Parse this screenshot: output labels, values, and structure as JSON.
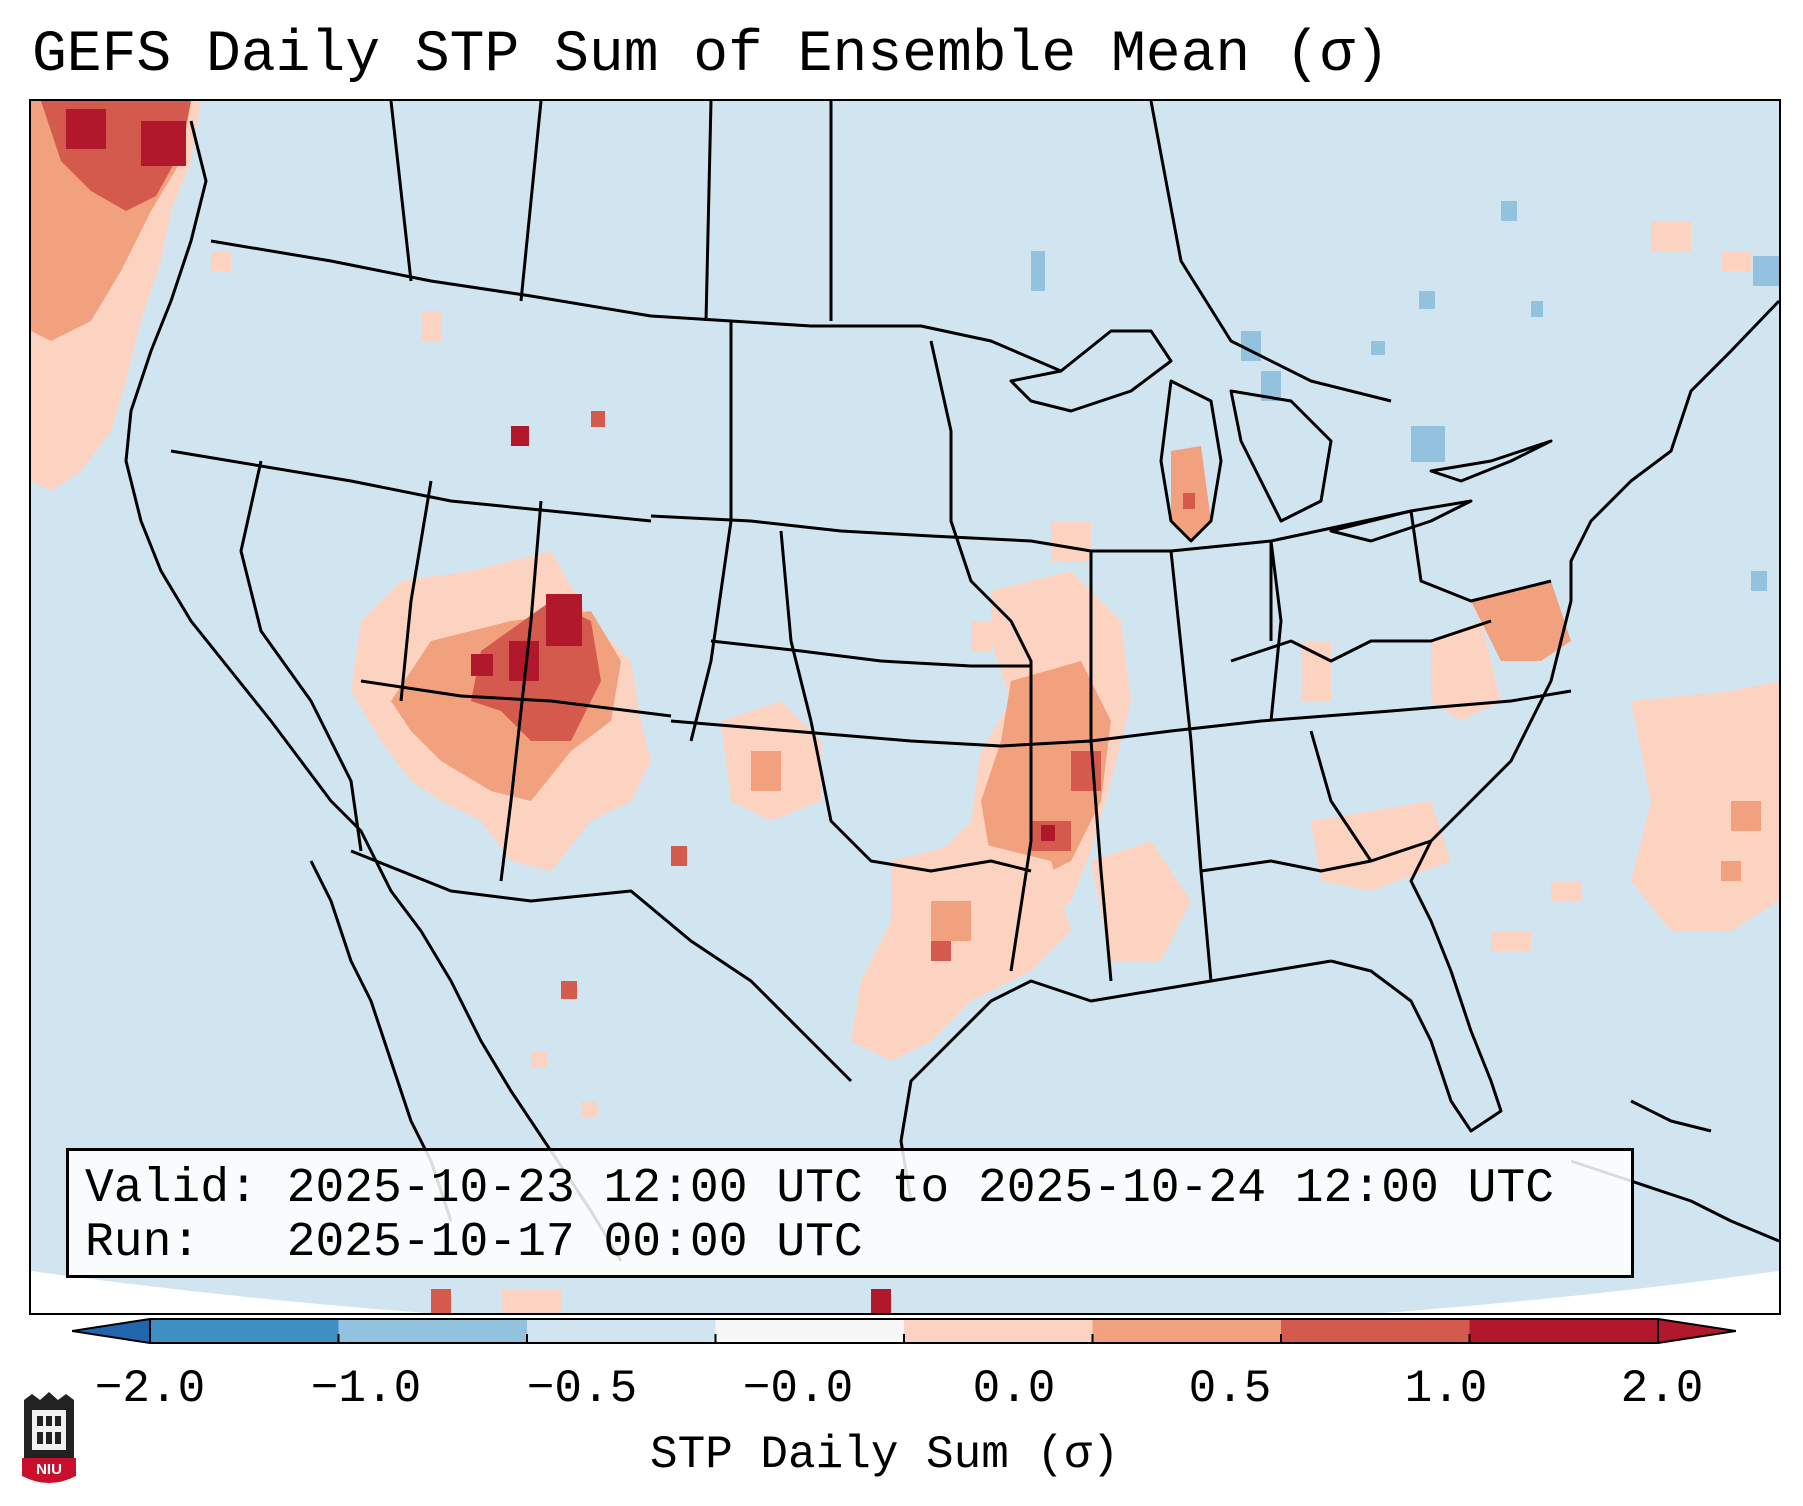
{
  "title": "GEFS Daily STP Sum of Ensemble Mean (σ)",
  "info": {
    "valid_line": "Valid: 2025-10-23 12:00 UTC to 2025-10-24 12:00 UTC",
    "run_line": "Run:   2025-10-17 00:00 UTC"
  },
  "colorbar": {
    "label": "STP Daily Sum (σ)",
    "ticks": [
      "−2.0",
      "−1.0",
      "−0.5",
      "−0.0",
      "0.0",
      "0.5",
      "1.0",
      "2.0"
    ],
    "bin_colors": [
      "#3f8fc5",
      "#92c2de",
      "#d1e5f0",
      "#f7f7f7",
      "#fbd3c0",
      "#f2a17f",
      "#d45a4e",
      "#b2182b"
    ],
    "extend_low_color": "#2166ac",
    "extend_high_color": "#b2182b"
  },
  "map": {
    "background_color": "#d1e5f0",
    "region": "Contiguous United States with southern Canada and northern Mexico",
    "anomaly_areas": [
      {
        "location": "Pacific Northwest coast (offshore WA/BC)",
        "value_sigma": 1.5
      },
      {
        "location": "Utah / western Colorado",
        "value_sigma": 1.3
      },
      {
        "location": "northern Arizona / New Mexico",
        "value_sigma": 0.8
      },
      {
        "location": "Missouri / Arkansas / Mississippi valley",
        "value_sigma": 0.9
      },
      {
        "location": "Texas Panhandle / western Oklahoma",
        "value_sigma": 0.5
      },
      {
        "location": "Gulf coast of Texas / Louisiana",
        "value_sigma": 0.3
      },
      {
        "location": "southern Lake Michigan",
        "value_sigma": 0.6
      },
      {
        "location": "Chesapeake Bay / Virginia coast",
        "value_sigma": 0.6
      },
      {
        "location": "western Atlantic offshore",
        "value_sigma": 0.4
      },
      {
        "location": "Pennsylvania / Lake Huron",
        "value_sigma": -0.7
      },
      {
        "location": "northern Maine / New Brunswick",
        "value_sigma": -0.7
      }
    ]
  },
  "logo": {
    "text": "NIU"
  }
}
